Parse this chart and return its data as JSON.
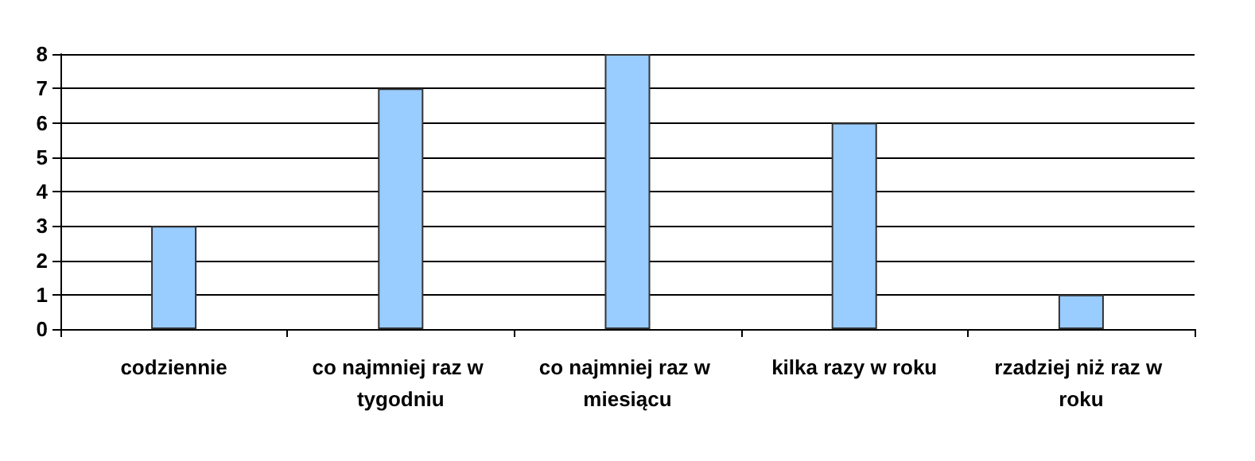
{
  "chart_data": {
    "type": "bar",
    "categories": [
      "codziennie",
      "co najmniej raz w tygodniu",
      "co najmniej raz w miesiącu",
      "kilka razy w roku",
      "rzadziej niż raz w roku"
    ],
    "values": [
      3,
      7,
      8,
      6,
      1
    ],
    "color": "#99ccff",
    "ylim": [
      0,
      8
    ],
    "yticks": [
      0,
      1,
      2,
      3,
      4,
      5,
      6,
      7,
      8
    ],
    "grid": "y"
  }
}
